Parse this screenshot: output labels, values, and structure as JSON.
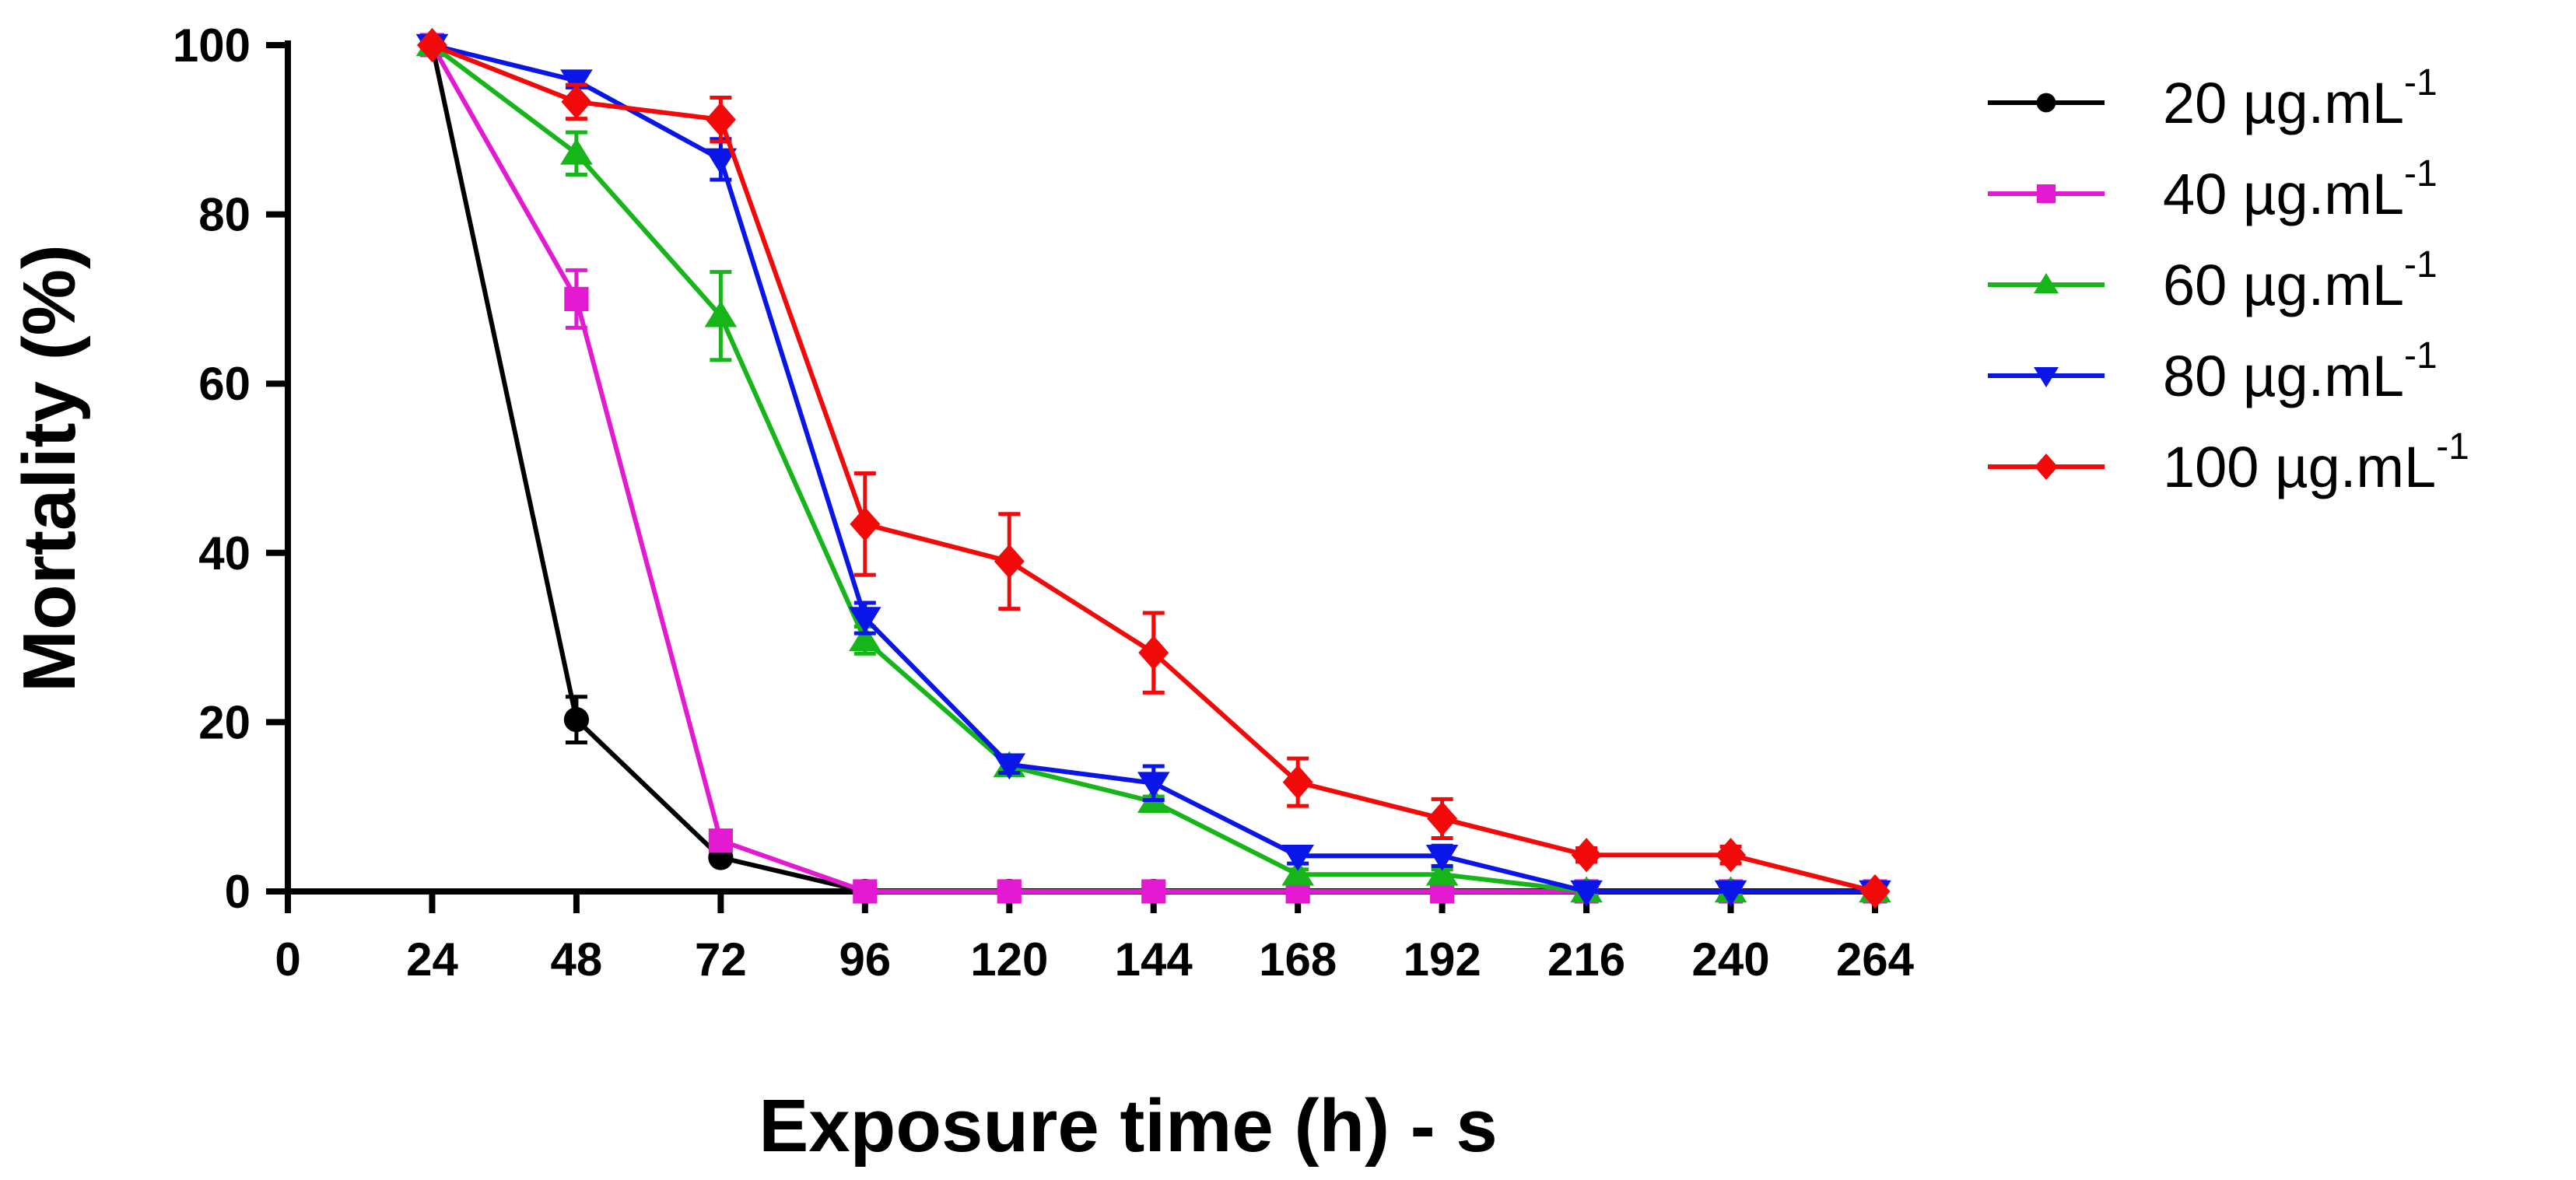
{
  "chart_data": {
    "type": "line",
    "title": "",
    "xlabel": "Exposure time (h) - s",
    "ylabel": "Mortality (%)",
    "xlim": [
      0,
      264
    ],
    "ylim": [
      0,
      100
    ],
    "xticks": [
      0,
      24,
      48,
      72,
      96,
      120,
      144,
      168,
      192,
      216,
      240,
      264
    ],
    "yticks": [
      0,
      20,
      40,
      60,
      80,
      100
    ],
    "legend_position": "right",
    "grid": false,
    "x": [
      24,
      48,
      72,
      96,
      120,
      144,
      168,
      192,
      216,
      240,
      264
    ],
    "series": [
      {
        "name": "20 µg.mL",
        "name_sup": "-1",
        "color": "#000000",
        "marker": "circle",
        "values": [
          100,
          20.3,
          4.0,
          0,
          0,
          0,
          0,
          0,
          0,
          0,
          0
        ],
        "errors": [
          0,
          2.7,
          0,
          0,
          0,
          0,
          0,
          0,
          0,
          0,
          0
        ]
      },
      {
        "name": "40 µg.mL",
        "name_sup": "-1",
        "color": "#e41ad2",
        "marker": "square",
        "values": [
          100,
          70.0,
          6.0,
          0,
          0,
          0,
          0,
          0,
          0,
          0,
          0
        ],
        "errors": [
          0,
          3.4,
          0,
          0,
          0,
          0,
          0,
          0,
          0,
          0,
          0
        ]
      },
      {
        "name": "60 µg.mL",
        "name_sup": "-1",
        "color": "#16b51a",
        "marker": "triangle-up",
        "values": [
          100,
          87.2,
          68.0,
          29.7,
          14.8,
          10.6,
          2.0,
          2.0,
          0,
          0,
          0
        ],
        "errors": [
          0,
          2.5,
          5.2,
          1.6,
          0.8,
          0.6,
          0.6,
          0.6,
          0,
          0,
          0
        ]
      },
      {
        "name": "80 µg.mL",
        "name_sup": "-1",
        "color": "#0a16e8",
        "marker": "triangle-down",
        "values": [
          100,
          95.8,
          86.5,
          32.3,
          15.0,
          12.8,
          4.2,
          4.2,
          0,
          0,
          0
        ],
        "errors": [
          0,
          0.8,
          2.4,
          1.8,
          1.0,
          2.0,
          0.9,
          1.2,
          0,
          0,
          0
        ]
      },
      {
        "name": "100 µg.mL",
        "name_sup": "-1",
        "color": "#f20a0a",
        "marker": "diamond",
        "values": [
          100,
          93.3,
          91.2,
          43.4,
          39.0,
          28.2,
          12.9,
          8.6,
          4.3,
          4.3,
          0
        ],
        "errors": [
          0,
          2.0,
          2.6,
          6.0,
          5.6,
          4.7,
          2.8,
          2.3,
          0.8,
          1.0,
          0.5
        ]
      }
    ]
  }
}
